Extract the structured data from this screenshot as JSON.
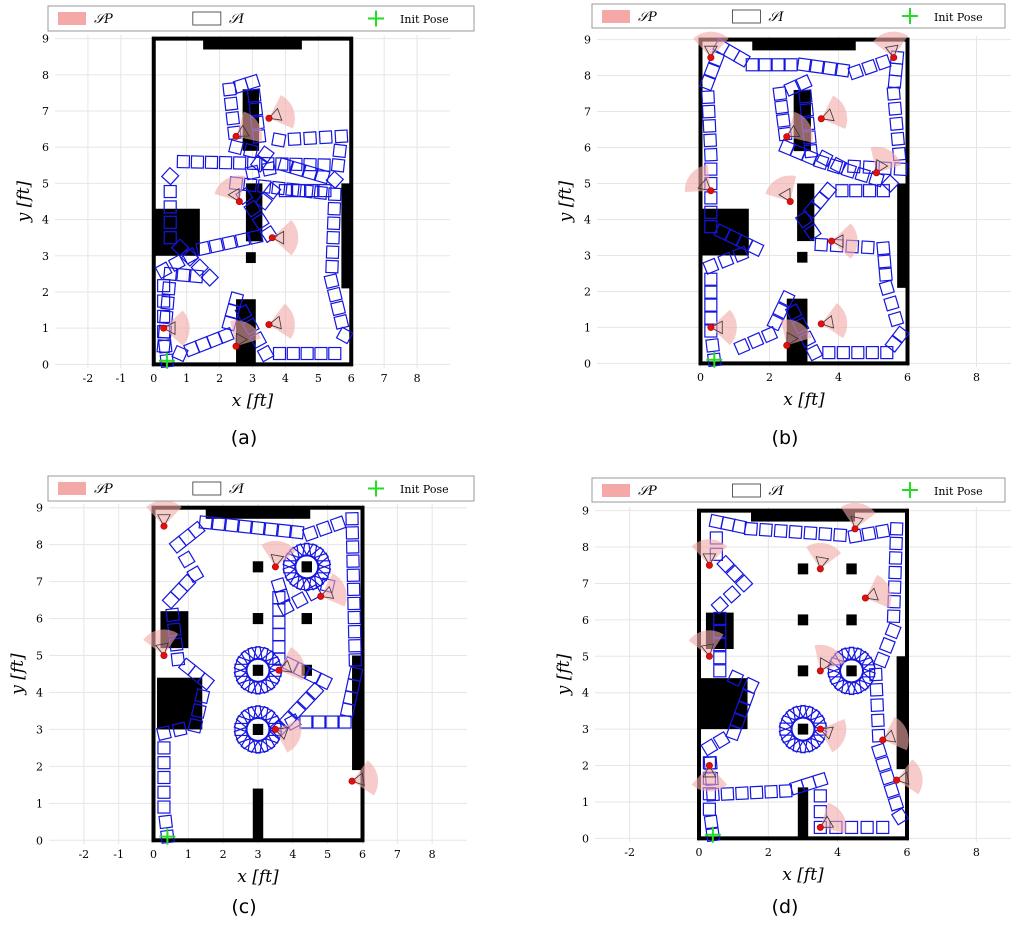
{
  "legend": {
    "sp_label": "𝒮P",
    "si_label": "𝒮I",
    "init_label": "Init Pose"
  },
  "chart_data": [
    {
      "type": "scatter",
      "caption": "(a)",
      "xlabel": "x [ft]",
      "ylabel": "y [ft]",
      "xlim": [
        -3,
        9
      ],
      "ylim": [
        -0.1,
        9.1
      ],
      "xticks": [
        -2,
        -1,
        0,
        1,
        2,
        3,
        4,
        5,
        6,
        7,
        8
      ],
      "yticks": [
        0,
        1,
        2,
        3,
        4,
        5,
        6,
        7,
        8,
        9
      ],
      "grid": true,
      "legend_position": "top",
      "init_pose": [
        0.4,
        0.1
      ],
      "obstacles": [
        [
          1.5,
          8.7,
          4.5,
          9.0
        ],
        [
          0.0,
          3.0,
          1.4,
          4.3
        ],
        [
          5.7,
          2.1,
          6.0,
          5.0
        ],
        [
          2.7,
          5.9,
          3.2,
          7.6
        ],
        [
          2.8,
          3.4,
          3.3,
          5.0
        ],
        [
          2.8,
          2.8,
          3.1,
          3.1
        ],
        [
          2.5,
          -0.0,
          3.1,
          1.8
        ]
      ],
      "sensing_poses": [
        [
          2.5,
          6.3,
          30
        ],
        [
          3.5,
          6.8,
          20
        ],
        [
          2.6,
          4.5,
          120
        ],
        [
          3.6,
          3.5,
          0
        ],
        [
          0.3,
          1.0,
          0
        ],
        [
          2.5,
          0.5,
          60
        ],
        [
          3.5,
          1.1,
          10
        ]
      ],
      "path": [
        [
          0.4,
          0.1
        ],
        [
          0.3,
          0.9
        ],
        [
          0.3,
          2.6
        ],
        [
          1.5,
          3.2
        ],
        [
          3.5,
          3.6
        ],
        [
          2.5,
          5.0
        ],
        [
          5.5,
          4.7
        ],
        [
          5.4,
          2.3
        ],
        [
          5.8,
          0.8
        ],
        [
          5.5,
          0.3
        ],
        [
          3.4,
          0.3
        ],
        [
          2.5,
          1.8
        ],
        [
          2.2,
          0.8
        ],
        [
          0.8,
          0.3
        ],
        [
          0.3,
          0.5
        ],
        [
          0.5,
          2.5
        ],
        [
          1.7,
          2.4
        ],
        [
          0.5,
          3.5
        ],
        [
          0.5,
          5.2
        ],
        [
          0.9,
          5.6
        ],
        [
          5.6,
          5.5
        ],
        [
          5.7,
          6.3
        ],
        [
          3.8,
          6.2
        ],
        [
          3.2,
          6.3
        ],
        [
          3.0,
          7.8
        ],
        [
          2.3,
          7.6
        ],
        [
          2.5,
          6.0
        ],
        [
          3.4,
          5.8
        ],
        [
          3.0,
          5.3
        ],
        [
          4.0,
          5.5
        ],
        [
          5.5,
          5.1
        ],
        [
          5.2,
          4.8
        ],
        [
          3.6,
          4.8
        ],
        [
          3.1,
          4.2
        ]
      ]
    },
    {
      "type": "scatter",
      "caption": "(b)",
      "xlabel": "x [ft]",
      "ylabel": "y [ft]",
      "xlim": [
        -3,
        9
      ],
      "ylim": [
        -0.1,
        9.1
      ],
      "xticks": [
        0,
        2,
        4,
        6,
        8
      ],
      "yticks": [
        0,
        1,
        2,
        3,
        4,
        5,
        6,
        7,
        8,
        9
      ],
      "grid": true,
      "legend_position": "top",
      "init_pose": [
        0.4,
        0.1
      ],
      "obstacles": [
        [
          1.5,
          8.7,
          4.5,
          9.0
        ],
        [
          0.0,
          3.0,
          1.4,
          4.3
        ],
        [
          5.7,
          2.1,
          6.0,
          5.0
        ],
        [
          2.7,
          5.9,
          3.2,
          7.6
        ],
        [
          2.8,
          3.4,
          3.3,
          5.0
        ],
        [
          2.8,
          2.8,
          3.1,
          3.1
        ],
        [
          2.5,
          -0.0,
          3.1,
          1.8
        ]
      ],
      "sensing_poses": [
        [
          0.3,
          8.5,
          90
        ],
        [
          5.6,
          8.5,
          100
        ],
        [
          2.5,
          6.3,
          30
        ],
        [
          3.5,
          6.8,
          20
        ],
        [
          5.1,
          5.3,
          60
        ],
        [
          0.3,
          4.8,
          140
        ],
        [
          2.6,
          4.5,
          120
        ],
        [
          3.8,
          3.4,
          0
        ],
        [
          0.3,
          1.0,
          0
        ],
        [
          2.5,
          0.5,
          60
        ],
        [
          3.5,
          1.1,
          10
        ]
      ],
      "path": [
        [
          0.4,
          0.1
        ],
        [
          0.3,
          0.9
        ],
        [
          0.3,
          2.7
        ],
        [
          1.6,
          3.2
        ],
        [
          0.3,
          3.8
        ],
        [
          0.3,
          5.8
        ],
        [
          0.2,
          7.8
        ],
        [
          0.6,
          8.8
        ],
        [
          1.5,
          8.3
        ],
        [
          3.0,
          8.3
        ],
        [
          4.5,
          8.1
        ],
        [
          5.7,
          8.5
        ],
        [
          5.6,
          7.5
        ],
        [
          5.8,
          5.4
        ],
        [
          4.0,
          5.5
        ],
        [
          3.2,
          5.9
        ],
        [
          3.0,
          7.8
        ],
        [
          2.3,
          7.5
        ],
        [
          2.5,
          6.0
        ],
        [
          3.5,
          5.6
        ],
        [
          5.5,
          5.0
        ],
        [
          5.3,
          4.8
        ],
        [
          3.7,
          4.8
        ],
        [
          3.0,
          4.0
        ],
        [
          3.5,
          3.3
        ],
        [
          5.3,
          3.2
        ],
        [
          5.4,
          2.1
        ],
        [
          5.8,
          0.8
        ],
        [
          5.4,
          0.3
        ],
        [
          3.3,
          0.3
        ],
        [
          2.5,
          1.8
        ],
        [
          2.0,
          0.8
        ],
        [
          0.8,
          0.3
        ]
      ]
    },
    {
      "type": "scatter",
      "caption": "(c)",
      "xlabel": "x [ft]",
      "ylabel": "y [ft]",
      "xlim": [
        -3,
        9
      ],
      "ylim": [
        -0.1,
        9.1
      ],
      "xticks": [
        -2,
        -1,
        0,
        1,
        2,
        3,
        4,
        5,
        6,
        7,
        8
      ],
      "yticks": [
        0,
        1,
        2,
        3,
        4,
        5,
        6,
        7,
        8,
        9
      ],
      "grid": true,
      "legend_position": "top",
      "init_pose": [
        0.4,
        0.1
      ],
      "obstacles": [
        [
          1.5,
          8.7,
          4.5,
          9.0
        ],
        [
          0.1,
          3.0,
          1.4,
          4.4
        ],
        [
          0.2,
          5.2,
          1.0,
          6.2
        ],
        [
          5.7,
          1.9,
          6.0,
          5.0
        ],
        [
          2.85,
          0.0,
          3.15,
          1.4
        ],
        [
          2.85,
          2.85,
          3.15,
          3.15
        ],
        [
          2.85,
          4.45,
          3.15,
          4.75
        ],
        [
          4.25,
          4.45,
          4.55,
          4.75
        ],
        [
          2.85,
          5.85,
          3.15,
          6.15
        ],
        [
          4.25,
          5.85,
          4.55,
          6.15
        ],
        [
          2.85,
          7.25,
          3.15,
          7.55
        ],
        [
          4.25,
          7.25,
          4.55,
          7.55
        ]
      ],
      "rings": [
        [
          3.0,
          3.0
        ],
        [
          3.0,
          4.6
        ],
        [
          4.4,
          7.4
        ]
      ],
      "sensing_poses": [
        [
          0.3,
          8.5,
          90
        ],
        [
          0.3,
          5.0,
          100
        ],
        [
          3.5,
          7.4,
          80
        ],
        [
          4.8,
          6.6,
          20
        ],
        [
          3.6,
          4.6,
          20
        ],
        [
          3.5,
          3.0,
          -20
        ],
        [
          5.7,
          1.6,
          10
        ]
      ],
      "path": [
        [
          0.4,
          0.1
        ],
        [
          0.3,
          0.9
        ],
        [
          0.3,
          2.9
        ],
        [
          1.2,
          3.1
        ],
        [
          1.5,
          4.3
        ],
        [
          0.7,
          4.9
        ],
        [
          0.5,
          6.5
        ],
        [
          1.2,
          7.2
        ],
        [
          0.7,
          8.0
        ],
        [
          1.5,
          8.6
        ],
        [
          4.5,
          8.3
        ],
        [
          5.7,
          8.7
        ],
        [
          5.8,
          4.5
        ],
        [
          5.5,
          3.2
        ],
        [
          4.0,
          3.2
        ],
        [
          3.6,
          3.0
        ],
        [
          4.9,
          4.3
        ],
        [
          3.6,
          4.9
        ],
        [
          3.6,
          5.9
        ],
        [
          3.6,
          6.9
        ],
        [
          3.8,
          6.3
        ],
        [
          5.0,
          6.9
        ],
        [
          4.9,
          6.5
        ]
      ]
    },
    {
      "type": "scatter",
      "caption": "(d)",
      "xlabel": "x [ft]",
      "ylabel": "y [ft]",
      "xlim": [
        -3,
        9
      ],
      "ylim": [
        -0.1,
        9.1
      ],
      "xticks": [
        -2,
        0,
        2,
        4,
        6,
        8
      ],
      "yticks": [
        0,
        1,
        2,
        3,
        4,
        5,
        6,
        7,
        8,
        9
      ],
      "grid": true,
      "legend_position": "top",
      "init_pose": [
        0.4,
        0.1
      ],
      "obstacles": [
        [
          1.5,
          8.7,
          4.5,
          9.0
        ],
        [
          0.0,
          3.0,
          1.4,
          4.4
        ],
        [
          0.2,
          5.2,
          1.0,
          6.2
        ],
        [
          5.7,
          1.9,
          6.0,
          5.0
        ],
        [
          2.85,
          0.0,
          3.15,
          1.4
        ],
        [
          2.85,
          2.85,
          3.15,
          3.15
        ],
        [
          2.85,
          4.45,
          3.15,
          4.75
        ],
        [
          4.25,
          4.45,
          4.55,
          4.75
        ],
        [
          2.85,
          5.85,
          3.15,
          6.15
        ],
        [
          4.25,
          5.85,
          4.55,
          6.15
        ],
        [
          2.85,
          7.25,
          3.15,
          7.55
        ],
        [
          4.25,
          7.25,
          4.55,
          7.55
        ]
      ],
      "rings": [
        [
          3.0,
          3.0
        ],
        [
          4.4,
          4.6
        ]
      ],
      "sensing_poses": [
        [
          0.3,
          7.5,
          90
        ],
        [
          0.3,
          5.0,
          100
        ],
        [
          4.5,
          8.5,
          80
        ],
        [
          3.5,
          7.4,
          80
        ],
        [
          4.8,
          6.6,
          20
        ],
        [
          3.5,
          4.6,
          60
        ],
        [
          3.5,
          3.0,
          -20
        ],
        [
          5.3,
          2.7,
          20
        ],
        [
          0.3,
          2.0,
          -90
        ],
        [
          5.7,
          1.6,
          10
        ],
        [
          3.5,
          0.3,
          30
        ]
      ],
      "path": [
        [
          0.4,
          0.1
        ],
        [
          0.3,
          0.8
        ],
        [
          0.3,
          2.5
        ],
        [
          1.0,
          2.9
        ],
        [
          1.5,
          4.2
        ],
        [
          0.6,
          4.6
        ],
        [
          0.6,
          6.4
        ],
        [
          1.3,
          7.0
        ],
        [
          0.5,
          7.8
        ],
        [
          0.5,
          8.7
        ],
        [
          1.5,
          8.5
        ],
        [
          4.5,
          8.3
        ],
        [
          5.7,
          8.5
        ],
        [
          5.6,
          5.7
        ],
        [
          5.1,
          4.5
        ],
        [
          5.2,
          2.4
        ],
        [
          5.8,
          0.6
        ],
        [
          5.3,
          0.3
        ],
        [
          3.5,
          0.3
        ],
        [
          3.5,
          1.6
        ],
        [
          2.5,
          1.3
        ],
        [
          0.4,
          1.2
        ],
        [
          0.3,
          2.5
        ]
      ]
    }
  ]
}
